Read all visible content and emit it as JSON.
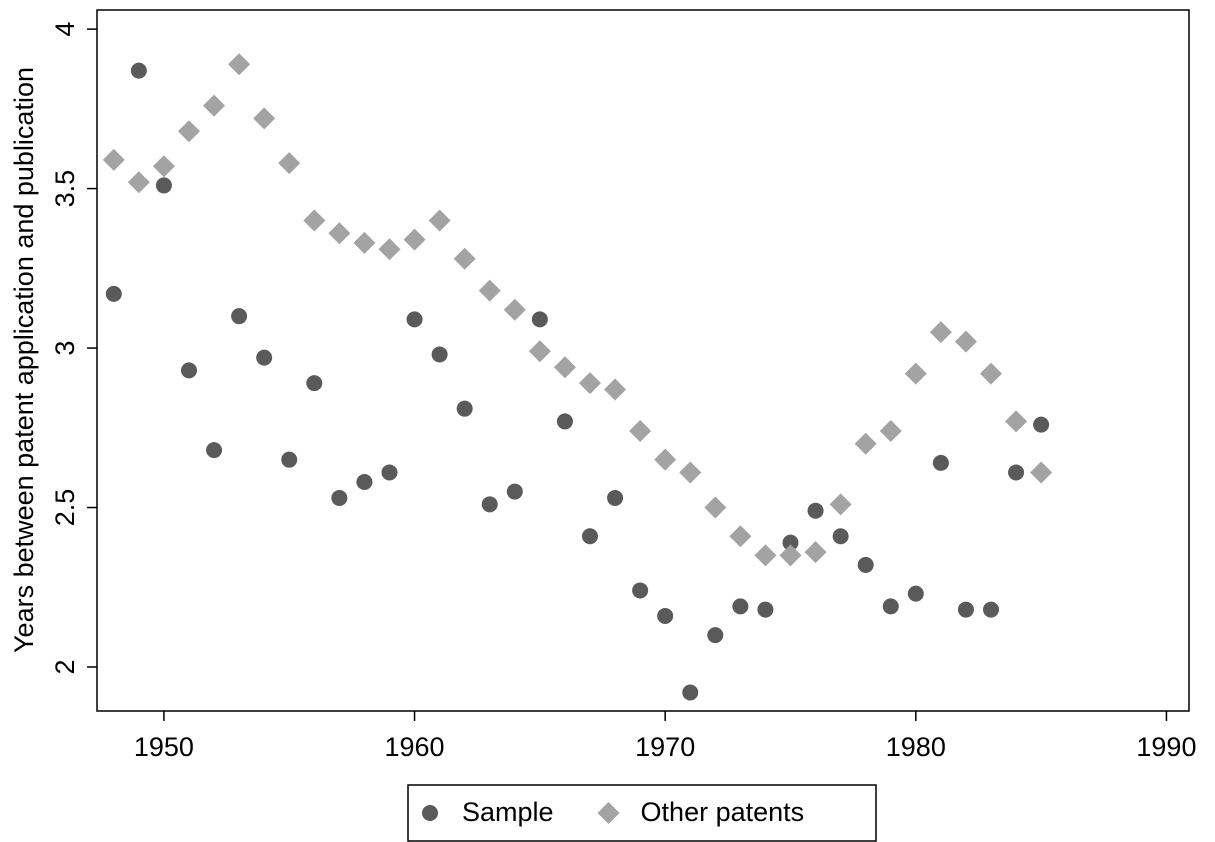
{
  "chart_data": {
    "type": "scatter",
    "y_label": "Years between patent application and publication",
    "x": [
      1948,
      1949,
      1950,
      1951,
      1952,
      1953,
      1954,
      1955,
      1956,
      1957,
      1958,
      1959,
      1960,
      1961,
      1962,
      1963,
      1964,
      1965,
      1966,
      1967,
      1968,
      1969,
      1970,
      1971,
      1972,
      1973,
      1974,
      1975,
      1976,
      1977,
      1978,
      1979,
      1980,
      1981,
      1982,
      1983,
      1984,
      1985
    ],
    "series": [
      {
        "name": "Sample",
        "color": "#5a5a5a",
        "marker": "circle",
        "values": [
          3.17,
          3.87,
          3.51,
          2.93,
          2.68,
          3.1,
          2.97,
          2.65,
          2.89,
          2.53,
          2.58,
          2.61,
          3.09,
          2.98,
          2.81,
          2.51,
          2.55,
          3.09,
          2.77,
          2.41,
          2.53,
          2.24,
          2.16,
          1.92,
          2.1,
          2.19,
          2.18,
          2.39,
          2.49,
          2.41,
          2.32,
          2.19,
          2.23,
          2.64,
          2.18,
          2.18,
          2.61,
          2.76
        ]
      },
      {
        "name": "Other patents",
        "color": "#a3a3a3",
        "marker": "diamond",
        "values": [
          3.59,
          3.52,
          3.57,
          3.68,
          3.76,
          3.89,
          3.72,
          3.58,
          3.4,
          3.36,
          3.33,
          3.31,
          3.34,
          3.4,
          3.28,
          3.18,
          3.12,
          2.99,
          2.94,
          2.89,
          2.87,
          2.74,
          2.65,
          2.61,
          2.5,
          2.41,
          2.35,
          2.35,
          2.36,
          2.51,
          2.7,
          2.74,
          2.92,
          3.05,
          3.02,
          2.92,
          2.77,
          2.61
        ]
      }
    ],
    "xlim": [
      1947.33,
      1990.9
    ],
    "ylim": [
      1.862,
      4.06
    ],
    "xticks": [
      1950,
      1960,
      1970,
      1980,
      1990
    ],
    "yticks": [
      2,
      2.5,
      3,
      3.5,
      4
    ],
    "grid": false,
    "legend": "bottom"
  }
}
